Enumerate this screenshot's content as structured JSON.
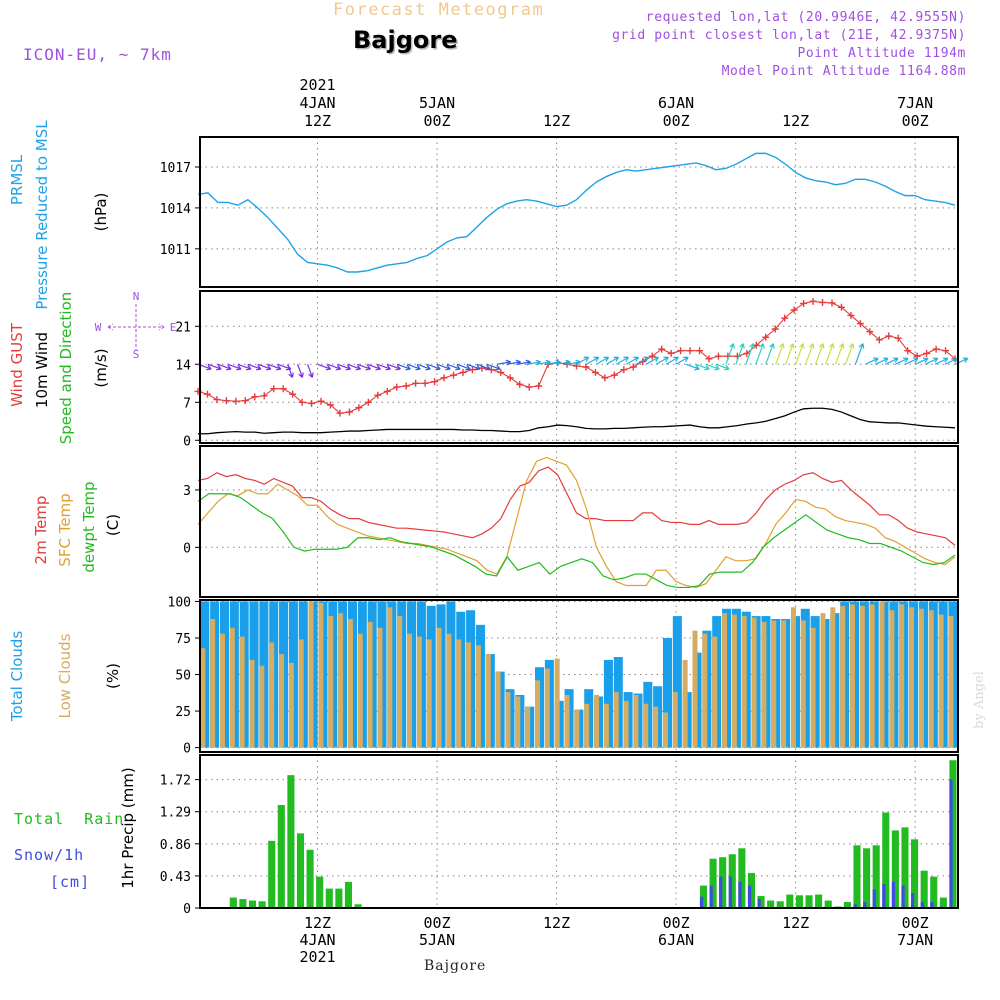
{
  "header": {
    "forecast_title": "Forecast Meteogram",
    "location": "Bajgore",
    "model": "ICON-EU, ~ 7km",
    "info_lines": [
      "requested lon,lat (20.9946E, 42.9555N)",
      "grid point closest lon,lat (21E, 42.9375N)",
      "Point Altitude 1194m",
      "Model Point Altitude 1164.88m"
    ]
  },
  "footer": {
    "location": "Bajgore",
    "credit": "by Angel"
  },
  "colors": {
    "pressure": "#1fa2e6",
    "gust": "#e63b3b",
    "wind": "#000000",
    "dir_label": "#22bb22",
    "t2m": "#e63b3b",
    "sfc": "#e0a030",
    "dewpt": "#22bb22",
    "total_clouds": "#1aa0ea",
    "low_clouds": "#d4ac62",
    "rain": "#22bb22",
    "snow": "#3b4ee0",
    "compass": "#a050e0",
    "info": "#a050e0",
    "title_faint": "#f0c890"
  },
  "time_axis": {
    "top_labels": [
      {
        "hour": 12,
        "lines": [
          "2021",
          "4JAN",
          "12Z"
        ]
      },
      {
        "hour": 24,
        "lines": [
          "5JAN",
          "00Z"
        ]
      },
      {
        "hour": 36,
        "lines": [
          "12Z"
        ]
      },
      {
        "hour": 48,
        "lines": [
          "6JAN",
          "00Z"
        ]
      },
      {
        "hour": 60,
        "lines": [
          "12Z"
        ]
      },
      {
        "hour": 72,
        "lines": [
          "7JAN",
          "00Z"
        ]
      }
    ],
    "bottom_labels": [
      {
        "hour": 12,
        "lines": [
          "12Z",
          "4JAN",
          "2021"
        ]
      },
      {
        "hour": 24,
        "lines": [
          "00Z",
          "5JAN"
        ]
      },
      {
        "hour": 36,
        "lines": [
          "12Z"
        ]
      },
      {
        "hour": 48,
        "lines": [
          "00Z",
          "6JAN"
        ]
      },
      {
        "hour": 60,
        "lines": [
          "12Z"
        ]
      },
      {
        "hour": 72,
        "lines": [
          "00Z",
          "7JAN"
        ]
      }
    ],
    "range": [
      0.2,
      76.3
    ]
  },
  "panel_labels": {
    "pressure": {
      "lines": [
        "PRMSL",
        "Pressure Reduced to MSL"
      ],
      "units": "(hPa)"
    },
    "wind": {
      "gust": "Wind GUST",
      "wind": "10m Wind",
      "dir": "Speed and Direction",
      "units": "(m/s)"
    },
    "temp": {
      "t2m": "2m Temp",
      "sfc": "SFC Temp",
      "dewpt": "dewpt Temp",
      "units": "(C)"
    },
    "clouds": {
      "total": "Total Clouds",
      "low": "Low Clouds",
      "units": "(%)"
    },
    "precip": {
      "rain": "Total  Rain",
      "snow": "Snow/1h",
      "snow_units": "[cm]",
      "units": "1hr Precip (mm)"
    }
  },
  "compass": {
    "n": "N",
    "s": "S",
    "w": "W",
    "e": "E"
  },
  "chart_data": [
    {
      "type": "line",
      "name": "pressure",
      "ylim": [
        1008.2,
        1019.2
      ],
      "yticks": [
        1011,
        1014,
        1017
      ],
      "grid": true,
      "series": [
        {
          "name": "PRMSL",
          "x": [
            0,
            1,
            2,
            3,
            4,
            5,
            6,
            7,
            8,
            9,
            10,
            11,
            12,
            13,
            14,
            15,
            16,
            17,
            18,
            19,
            20,
            21,
            22,
            23,
            24,
            25,
            26,
            27,
            28,
            29,
            30,
            31,
            32,
            33,
            34,
            35,
            36,
            37,
            38,
            39,
            40,
            41,
            42,
            43,
            44,
            45,
            46,
            47,
            48,
            49,
            50,
            51,
            52,
            53,
            54,
            55,
            56,
            57,
            58,
            59,
            60,
            61,
            62,
            63,
            64,
            65,
            66,
            67,
            68,
            69,
            70,
            71,
            72,
            73,
            74,
            75,
            76
          ],
          "values": [
            1015.0,
            1015.1,
            1014.4,
            1014.4,
            1014.2,
            1014.6,
            1014.0,
            1013.3,
            1012.5,
            1011.7,
            1010.6,
            1010.0,
            1009.9,
            1009.8,
            1009.6,
            1009.3,
            1009.3,
            1009.4,
            1009.6,
            1009.8,
            1009.9,
            1010.0,
            1010.3,
            1010.5,
            1011.0,
            1011.5,
            1011.8,
            1011.9,
            1012.6,
            1013.3,
            1013.9,
            1014.3,
            1014.5,
            1014.6,
            1014.5,
            1014.3,
            1014.1,
            1014.2,
            1014.6,
            1015.3,
            1015.9,
            1016.3,
            1016.6,
            1016.8,
            1016.7,
            1016.8,
            1016.9,
            1017.0,
            1017.1,
            1017.2,
            1017.3,
            1017.1,
            1016.8,
            1016.9,
            1017.2,
            1017.6,
            1018.0,
            1018.0,
            1017.7,
            1017.2,
            1016.6,
            1016.2,
            1016.0,
            1015.9,
            1015.7,
            1015.8,
            1016.1,
            1016.1,
            1015.9,
            1015.6,
            1015.2,
            1014.9,
            1014.9,
            1014.6,
            1014.5,
            1014.4,
            1014.2
          ]
        }
      ]
    },
    {
      "type": "line",
      "name": "wind",
      "ylim": [
        -0.5,
        27.5
      ],
      "yticks": [
        0,
        7,
        14,
        21
      ],
      "grid": true,
      "series": [
        {
          "name": "Wind GUST",
          "values": [
            9.0,
            8.5,
            7.5,
            7.3,
            7.2,
            7.3,
            8.0,
            8.2,
            9.5,
            9.5,
            8.5,
            7.0,
            6.8,
            7.2,
            6.5,
            5.0,
            5.2,
            6.0,
            7.0,
            8.3,
            9.0,
            9.8,
            10.0,
            10.5,
            10.5,
            10.8,
            11.5,
            12.0,
            12.5,
            13.0,
            13.3,
            13.0,
            12.5,
            11.5,
            10.3,
            9.8,
            10.0,
            14.0,
            14.3,
            14.0,
            13.7,
            13.5,
            12.5,
            11.5,
            12.0,
            13.0,
            13.5,
            14.5,
            15.5,
            16.8,
            16.0,
            16.5,
            16.5,
            16.5,
            15.0,
            15.5,
            15.5,
            15.5,
            16.0,
            17.5,
            19.0,
            20.5,
            22.5,
            24.0,
            25.2,
            25.6,
            25.4,
            25.3,
            24.5,
            23.0,
            21.5,
            20.0,
            18.5,
            19.2,
            18.8,
            16.5,
            15.5,
            16.0,
            16.8,
            16.5,
            15.0
          ]
        },
        {
          "name": "10m Wind",
          "values": [
            1.2,
            1.2,
            1.4,
            1.5,
            1.6,
            1.5,
            1.5,
            1.3,
            1.4,
            1.5,
            1.5,
            1.4,
            1.4,
            1.4,
            1.5,
            1.6,
            1.7,
            1.7,
            1.8,
            1.9,
            2.0,
            2.0,
            2.0,
            2.0,
            2.0,
            2.0,
            2.0,
            2.0,
            1.9,
            1.9,
            1.8,
            1.8,
            1.7,
            1.6,
            1.6,
            1.8,
            2.3,
            2.5,
            2.8,
            2.7,
            2.5,
            2.2,
            2.1,
            2.1,
            2.2,
            2.2,
            2.3,
            2.4,
            2.5,
            2.5,
            2.6,
            2.7,
            2.8,
            2.5,
            2.3,
            2.3,
            2.5,
            2.7,
            3.0,
            3.2,
            3.5,
            4.0,
            4.5,
            5.2,
            5.8,
            5.9,
            5.9,
            5.7,
            5.2,
            4.5,
            3.8,
            3.4,
            3.3,
            3.2,
            3.2,
            3.0,
            2.8,
            2.6,
            2.5,
            2.4,
            2.3
          ]
        }
      ]
    },
    {
      "type": "line",
      "name": "temperature",
      "ylim": [
        -2.6,
        5.3
      ],
      "yticks": [
        0,
        3
      ],
      "grid": true,
      "series": [
        {
          "name": "2m Temp",
          "values": [
            3.5,
            3.6,
            3.9,
            3.7,
            3.8,
            3.6,
            3.5,
            3.3,
            3.6,
            3.4,
            3.2,
            2.6,
            2.6,
            2.4,
            2.0,
            1.7,
            1.5,
            1.5,
            1.3,
            1.2,
            1.1,
            1.0,
            1.0,
            0.95,
            0.9,
            0.85,
            0.8,
            0.7,
            0.6,
            0.5,
            0.7,
            1.0,
            1.5,
            2.5,
            3.2,
            3.4,
            4.0,
            4.2,
            3.8,
            2.8,
            1.8,
            1.5,
            1.5,
            1.4,
            1.4,
            1.4,
            1.4,
            1.8,
            1.8,
            1.4,
            1.3,
            1.3,
            1.2,
            1.2,
            1.4,
            1.2,
            1.2,
            1.2,
            1.3,
            1.8,
            2.5,
            3.0,
            3.3,
            3.5,
            3.8,
            3.9,
            3.6,
            3.4,
            3.5,
            3.0,
            2.6,
            2.2,
            1.7,
            1.7,
            1.4,
            1.0,
            0.8,
            0.7,
            0.6,
            0.5,
            0.1
          ]
        },
        {
          "name": "SFC Temp",
          "values": [
            1.2,
            1.8,
            2.4,
            2.8,
            2.7,
            3.0,
            2.8,
            2.8,
            3.3,
            3.0,
            2.7,
            2.2,
            2.2,
            1.6,
            1.2,
            1.0,
            0.8,
            0.6,
            0.5,
            0.4,
            0.3,
            0.2,
            0.2,
            0.1,
            0.0,
            -0.1,
            -0.3,
            -0.5,
            -0.7,
            -1.2,
            -1.4,
            -0.5,
            1.5,
            3.5,
            4.5,
            4.7,
            4.5,
            4.3,
            3.5,
            2.0,
            0.0,
            -1.0,
            -1.8,
            -2.0,
            -2.0,
            -2.0,
            -1.2,
            -1.2,
            -1.8,
            -2.0,
            -2.1,
            -1.9,
            -1.2,
            -0.5,
            -0.7,
            -0.7,
            -0.6,
            0.2,
            1.2,
            1.8,
            2.5,
            2.4,
            2.1,
            2.0,
            1.6,
            1.4,
            1.3,
            1.2,
            1.0,
            0.5,
            0.3,
            0.0,
            -0.3,
            -0.6,
            -0.8,
            -0.9,
            -0.5
          ]
        },
        {
          "name": "dewpt Temp",
          "values": [
            2.4,
            2.8,
            2.8,
            2.8,
            2.6,
            2.2,
            1.8,
            1.5,
            0.8,
            0.0,
            -0.2,
            -0.1,
            -0.1,
            -0.1,
            0.0,
            0.5,
            0.5,
            0.4,
            0.5,
            0.3,
            0.2,
            0.1,
            0.0,
            -0.2,
            -0.4,
            -0.7,
            -1.0,
            -1.4,
            -1.5,
            -0.5,
            -1.2,
            -1.0,
            -0.8,
            -1.4,
            -1.0,
            -0.8,
            -0.6,
            -0.8,
            -1.5,
            -1.7,
            -1.6,
            -1.4,
            -1.4,
            -1.7,
            -2.0,
            -2.1,
            -2.1,
            -2.0,
            -1.4,
            -1.3,
            -1.3,
            -1.3,
            -0.8,
            0.0,
            0.5,
            0.9,
            1.3,
            1.7,
            1.3,
            0.9,
            0.7,
            0.5,
            0.4,
            0.2,
            0.2,
            0.0,
            -0.2,
            -0.5,
            -0.8,
            -0.9,
            -0.8,
            -0.4
          ]
        }
      ]
    },
    {
      "type": "bar",
      "name": "clouds",
      "ylim": [
        -3,
        101
      ],
      "yticks": [
        0,
        25,
        50,
        75,
        100
      ],
      "grid": true,
      "series": [
        {
          "name": "Total Clouds",
          "values": [
            100,
            100,
            100,
            100,
            100,
            100,
            100,
            100,
            100,
            100,
            100,
            100,
            100,
            100,
            100,
            100,
            100,
            100,
            100,
            100,
            100,
            100,
            100,
            97,
            98,
            100,
            93,
            94,
            84,
            64,
            52,
            40,
            36,
            28,
            55,
            60,
            32,
            40,
            26,
            40,
            35,
            60,
            62,
            38,
            37,
            45,
            42,
            75,
            90,
            38,
            65,
            80,
            90,
            95,
            95,
            93,
            90,
            90,
            88,
            88,
            90,
            95,
            90,
            88,
            92,
            100,
            100,
            100,
            100,
            100,
            100,
            100,
            100,
            100,
            100,
            100,
            100
          ]
        },
        {
          "name": "Low Clouds",
          "values": [
            68,
            88,
            78,
            82,
            76,
            60,
            56,
            72,
            64,
            58,
            74,
            100,
            99,
            90,
            92,
            88,
            78,
            86,
            82,
            96,
            90,
            78,
            76,
            74,
            82,
            78,
            74,
            72,
            70,
            64,
            52,
            38,
            35,
            28,
            46,
            54,
            61,
            36,
            26,
            30,
            36,
            30,
            38,
            32,
            36,
            30,
            28,
            24,
            38,
            60,
            80,
            78,
            76,
            92,
            91,
            90,
            89,
            86,
            87,
            87,
            96,
            87,
            82,
            92,
            96,
            97,
            98,
            97,
            98,
            100,
            94,
            98,
            96,
            95,
            94,
            91,
            90
          ]
        }
      ]
    },
    {
      "type": "bar",
      "name": "precipitation",
      "ylim": [
        0,
        2.05
      ],
      "yticks": [
        0,
        0.43,
        0.86,
        1.29,
        1.72
      ],
      "grid": true,
      "series": [
        {
          "name": "Total Rain",
          "values": [
            0,
            0,
            0,
            0.14,
            0.12,
            0.1,
            0.09,
            0.9,
            1.38,
            1.78,
            1.0,
            0.78,
            0.42,
            0.26,
            0.26,
            0.35,
            0.05,
            0,
            0,
            0,
            0,
            0,
            0,
            0.01,
            0.01,
            0.01,
            0,
            0,
            0,
            0,
            0,
            0,
            0,
            0,
            0,
            0,
            0,
            0,
            0,
            0,
            0,
            0,
            0,
            0,
            0,
            0,
            0,
            0,
            0,
            0,
            0,
            0,
            0.3,
            0.66,
            0.68,
            0.72,
            0.8,
            0.47,
            0.16,
            0.1,
            0.09,
            0.18,
            0.17,
            0.17,
            0.18,
            0.1,
            0.02,
            0.08,
            0.84,
            0.8,
            0.84,
            1.28,
            1.04,
            1.08,
            0.92,
            0.5,
            0.42,
            0.14,
            1.98
          ]
        },
        {
          "name": "Snow/1h",
          "values": [
            0,
            0,
            0,
            0,
            0,
            0,
            0,
            0,
            0,
            0,
            0,
            0,
            0,
            0,
            0,
            0,
            0,
            0,
            0,
            0,
            0,
            0,
            0,
            0,
            0,
            0,
            0,
            0,
            0,
            0,
            0,
            0,
            0,
            0,
            0,
            0,
            0,
            0,
            0,
            0,
            0,
            0,
            0,
            0,
            0,
            0,
            0,
            0,
            0,
            0,
            0,
            0,
            0.15,
            0.3,
            0.42,
            0.42,
            0.35,
            0.3,
            0.12,
            0,
            0,
            0,
            0,
            0,
            0,
            0,
            0,
            0,
            0.05,
            0.08,
            0.25,
            0.32,
            0.35,
            0.3,
            0.2,
            0.08,
            0.08,
            0.02,
            1.72
          ]
        }
      ]
    }
  ]
}
